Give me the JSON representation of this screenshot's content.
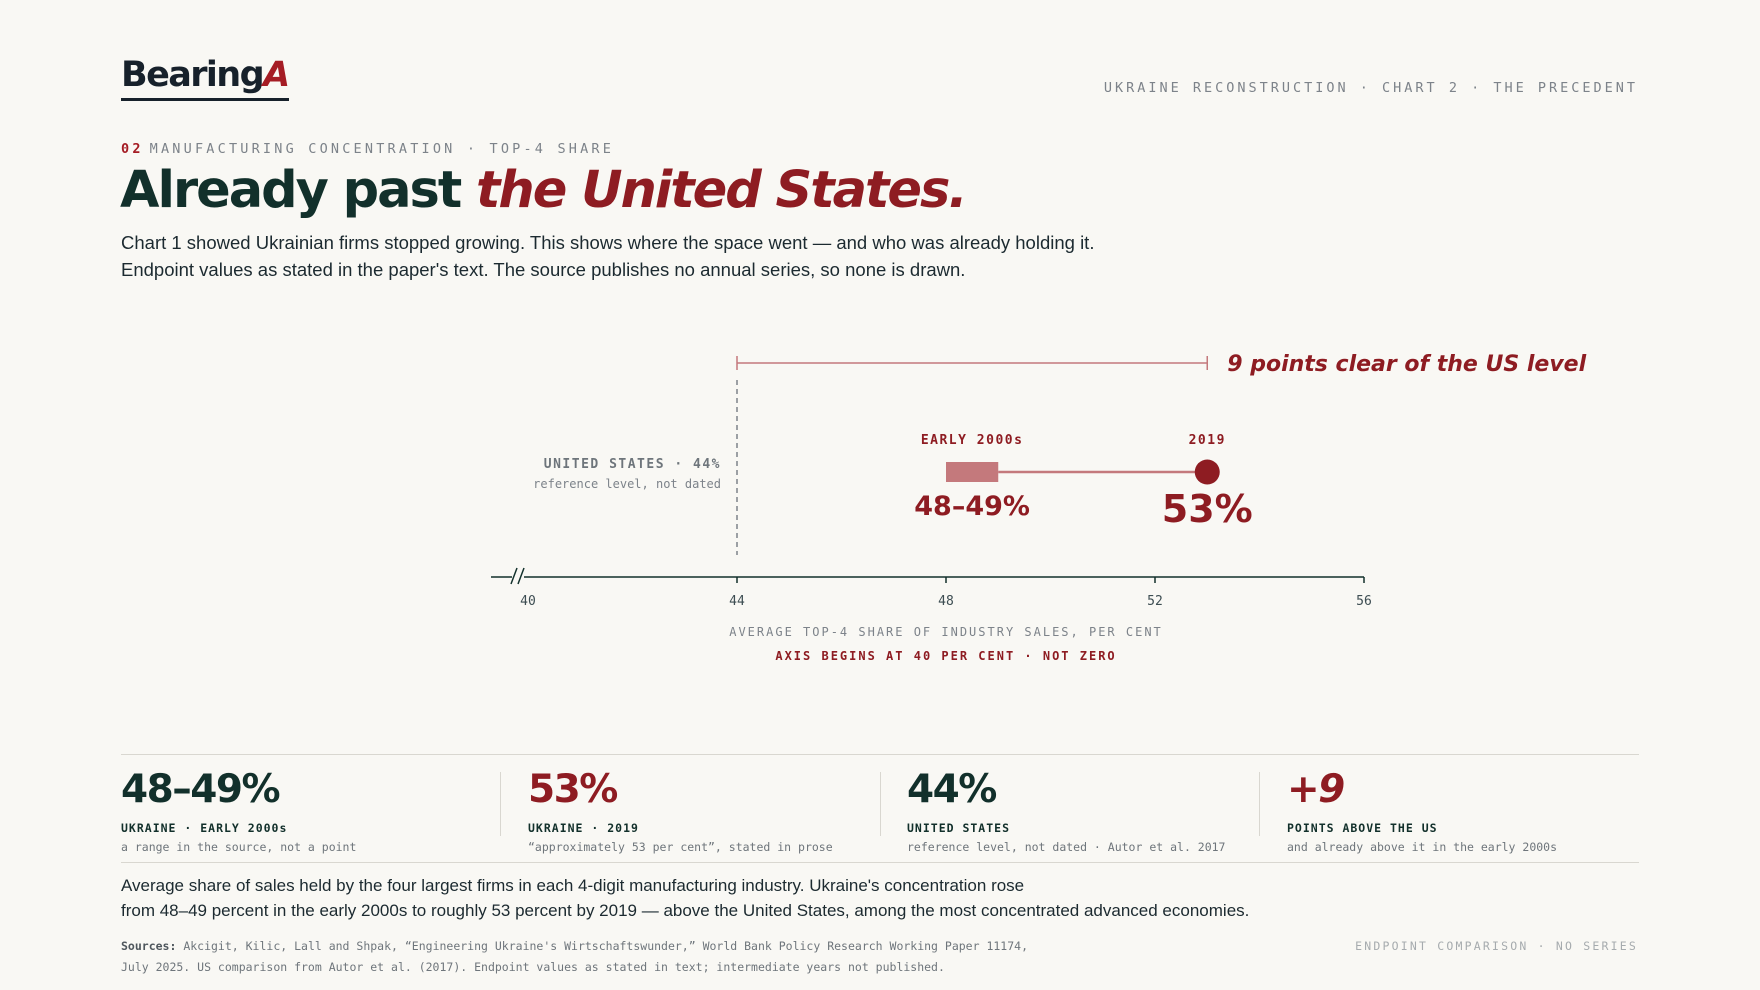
{
  "brand": {
    "logo_main": "Bearing",
    "logo_accent": "A"
  },
  "header": {
    "breadcrumb": "UKRAINE RECONSTRUCTION · CHART 2 · THE PRECEDENT"
  },
  "kicker": {
    "number": "02",
    "text": "MANUFACTURING CONCENTRATION · TOP-4 SHARE"
  },
  "headline": {
    "plain": "Already past ",
    "emphasis": "the United States."
  },
  "subtext": {
    "line1": "Chart 1 showed Ukrainian firms stopped growing. This shows where the space went — and who was already holding it.",
    "line2": "Endpoint values as stated in the paper's text. The source publishes no annual series, so none is drawn."
  },
  "colors": {
    "accent": "#8e1c22",
    "accent_light": "#c4797c",
    "dark": "#12302b",
    "muted": "#7d838a",
    "background": "#f9f8f4"
  },
  "chart_data": {
    "type": "dumbbell",
    "xlim": [
      40,
      56
    ],
    "xticks": [
      40,
      44,
      48,
      52,
      56
    ],
    "axis_break_at_start": true,
    "xlabel": "AVERAGE TOP-4 SHARE OF INDUSTRY SALES, PER CENT",
    "axis_note": "AXIS BEGINS AT 40 PER CENT · NOT ZERO",
    "reference": {
      "value": 44,
      "label": "UNITED STATES · 44%",
      "sublabel": "reference level, not dated"
    },
    "range": {
      "label": "EARLY 2000s",
      "from": 48,
      "to": 49,
      "value_label": "48–49%"
    },
    "point": {
      "label": "2019",
      "value": 53,
      "value_label": "53%"
    },
    "gap_bracket": {
      "from": 44,
      "to": 53,
      "label": "9 points clear of the US level"
    }
  },
  "stats": [
    {
      "value": "48–49%",
      "label": "UKRAINE · EARLY 2000s",
      "note": "a range in the source, not a point"
    },
    {
      "value": "53%",
      "label": "UKRAINE · 2019",
      "note": "“approximately 53 per cent”, stated in prose"
    },
    {
      "value": "44%",
      "label": "UNITED STATES",
      "note": "reference level, not dated · Autor et al. 2017"
    },
    {
      "value": "+9",
      "label": "POINTS ABOVE THE US",
      "note": "and already above it in the early 2000s"
    }
  ],
  "caption": {
    "line1": "Average share of sales held by the four largest firms in each 4-digit manufacturing industry. Ukraine's concentration rose",
    "line2": "from 48–49 percent in the early 2000s to roughly 53 percent by 2019 — above the United States, among the most concentrated advanced economies."
  },
  "sources": {
    "prefix": "Sources:",
    "line1": " Akcigit, Kilic, Lall and Shpak, “Engineering Ukraine's Wirtschaftswunder,” World Bank Policy Research Working Paper 11174,",
    "line2": "July 2025. US comparison from Autor et al. (2017). Endpoint values as stated in text; intermediate years not published."
  },
  "footer": {
    "tag": "ENDPOINT COMPARISON · NO SERIES"
  }
}
